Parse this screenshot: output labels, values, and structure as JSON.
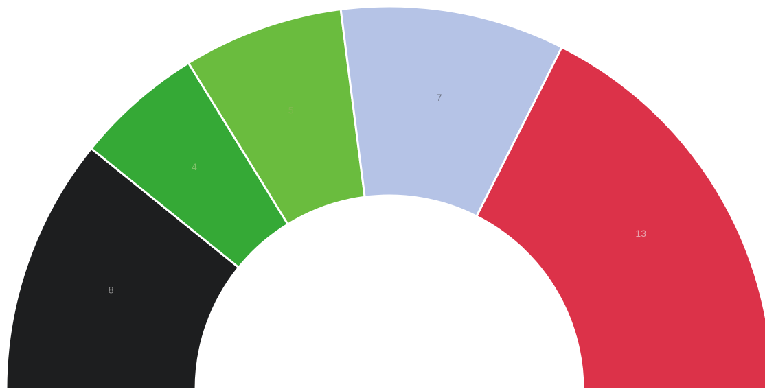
{
  "chart_data": {
    "type": "pie",
    "variant": "semicircle-donut",
    "categories": [
      "",
      "",
      "",
      "",
      ""
    ],
    "values": [
      8,
      4,
      5,
      7,
      13
    ],
    "colors": [
      "#1d1e1f",
      "#35a936",
      "#6abc3e",
      "#b5c3e6",
      "#dc3249"
    ],
    "label_colors": [
      "#8a8a8a",
      "#7fc06a",
      "#7fb84f",
      "#6a7080",
      "#e7a0aa"
    ],
    "data_labels": [
      "8",
      "4",
      "5",
      "7",
      "13"
    ],
    "title": "",
    "legend": "none"
  }
}
